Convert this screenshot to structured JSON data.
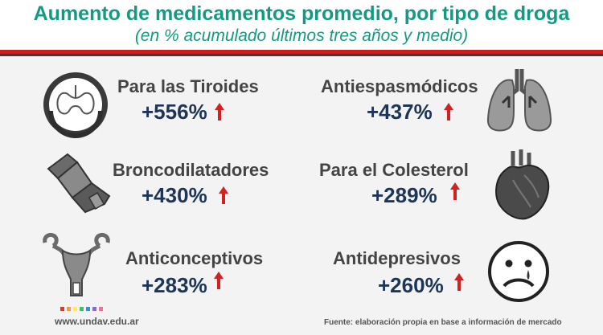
{
  "header": {
    "title": "Aumento de medicamentos promedio, por tipo de droga",
    "subtitle": "(en % acumulado últimos tres años y medio)"
  },
  "items": [
    {
      "label": "Para las Tiroides",
      "value": "+556%",
      "icon": "thyroid-icon"
    },
    {
      "label": "Antiespasmódicos",
      "value": "+437%",
      "icon": "lungs-icon"
    },
    {
      "label": "Broncodilatadores",
      "value": "+430%",
      "icon": "inhaler-icon"
    },
    {
      "label": "Para el Colesterol",
      "value": "+289%",
      "icon": "heart-icon"
    },
    {
      "label": "Anticonceptivos",
      "value": "+283%",
      "icon": "uterus-icon"
    },
    {
      "label": "Antidepresivos",
      "value": "+260%",
      "icon": "sad-face-icon"
    }
  ],
  "footer": {
    "url": "www.undav.edu.ar",
    "source": "Fuente: elaboración propia en base a información de mercado",
    "logo_colors": [
      "#e3342f",
      "#f6993f",
      "#ffed4a",
      "#38c172",
      "#3490dc",
      "#9561e2",
      "#f66d9b"
    ]
  },
  "colors": {
    "title": "#149a82",
    "value": "#1d3557",
    "arrow": "#d32020",
    "rule_red": "#c81e1e"
  }
}
